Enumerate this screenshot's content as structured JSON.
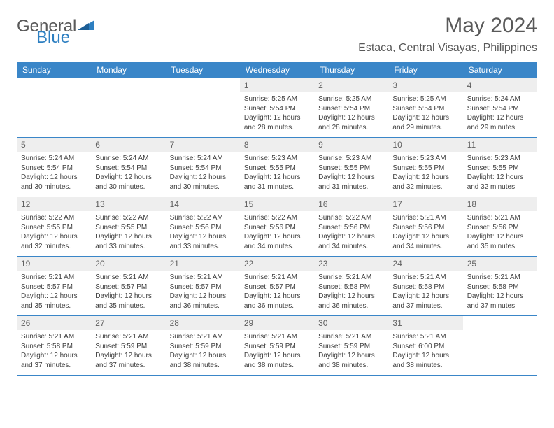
{
  "logo": {
    "text_general": "General",
    "text_blue": "Blue",
    "icon_color": "#2d7fc1"
  },
  "header": {
    "month_title": "May 2024",
    "location": "Estaca, Central Visayas, Philippines"
  },
  "colors": {
    "header_bg": "#3a86c8",
    "header_text": "#ffffff",
    "daynum_bg": "#eeeeee",
    "border": "#3a86c8",
    "body_text": "#404040"
  },
  "weekdays": [
    "Sunday",
    "Monday",
    "Tuesday",
    "Wednesday",
    "Thursday",
    "Friday",
    "Saturday"
  ],
  "weeks": [
    [
      {
        "n": "",
        "sr": "",
        "ss": "",
        "dl": ""
      },
      {
        "n": "",
        "sr": "",
        "ss": "",
        "dl": ""
      },
      {
        "n": "",
        "sr": "",
        "ss": "",
        "dl": ""
      },
      {
        "n": "1",
        "sr": "Sunrise: 5:25 AM",
        "ss": "Sunset: 5:54 PM",
        "dl": "Daylight: 12 hours and 28 minutes."
      },
      {
        "n": "2",
        "sr": "Sunrise: 5:25 AM",
        "ss": "Sunset: 5:54 PM",
        "dl": "Daylight: 12 hours and 28 minutes."
      },
      {
        "n": "3",
        "sr": "Sunrise: 5:25 AM",
        "ss": "Sunset: 5:54 PM",
        "dl": "Daylight: 12 hours and 29 minutes."
      },
      {
        "n": "4",
        "sr": "Sunrise: 5:24 AM",
        "ss": "Sunset: 5:54 PM",
        "dl": "Daylight: 12 hours and 29 minutes."
      }
    ],
    [
      {
        "n": "5",
        "sr": "Sunrise: 5:24 AM",
        "ss": "Sunset: 5:54 PM",
        "dl": "Daylight: 12 hours and 30 minutes."
      },
      {
        "n": "6",
        "sr": "Sunrise: 5:24 AM",
        "ss": "Sunset: 5:54 PM",
        "dl": "Daylight: 12 hours and 30 minutes."
      },
      {
        "n": "7",
        "sr": "Sunrise: 5:24 AM",
        "ss": "Sunset: 5:54 PM",
        "dl": "Daylight: 12 hours and 30 minutes."
      },
      {
        "n": "8",
        "sr": "Sunrise: 5:23 AM",
        "ss": "Sunset: 5:55 PM",
        "dl": "Daylight: 12 hours and 31 minutes."
      },
      {
        "n": "9",
        "sr": "Sunrise: 5:23 AM",
        "ss": "Sunset: 5:55 PM",
        "dl": "Daylight: 12 hours and 31 minutes."
      },
      {
        "n": "10",
        "sr": "Sunrise: 5:23 AM",
        "ss": "Sunset: 5:55 PM",
        "dl": "Daylight: 12 hours and 32 minutes."
      },
      {
        "n": "11",
        "sr": "Sunrise: 5:23 AM",
        "ss": "Sunset: 5:55 PM",
        "dl": "Daylight: 12 hours and 32 minutes."
      }
    ],
    [
      {
        "n": "12",
        "sr": "Sunrise: 5:22 AM",
        "ss": "Sunset: 5:55 PM",
        "dl": "Daylight: 12 hours and 32 minutes."
      },
      {
        "n": "13",
        "sr": "Sunrise: 5:22 AM",
        "ss": "Sunset: 5:55 PM",
        "dl": "Daylight: 12 hours and 33 minutes."
      },
      {
        "n": "14",
        "sr": "Sunrise: 5:22 AM",
        "ss": "Sunset: 5:56 PM",
        "dl": "Daylight: 12 hours and 33 minutes."
      },
      {
        "n": "15",
        "sr": "Sunrise: 5:22 AM",
        "ss": "Sunset: 5:56 PM",
        "dl": "Daylight: 12 hours and 34 minutes."
      },
      {
        "n": "16",
        "sr": "Sunrise: 5:22 AM",
        "ss": "Sunset: 5:56 PM",
        "dl": "Daylight: 12 hours and 34 minutes."
      },
      {
        "n": "17",
        "sr": "Sunrise: 5:21 AM",
        "ss": "Sunset: 5:56 PM",
        "dl": "Daylight: 12 hours and 34 minutes."
      },
      {
        "n": "18",
        "sr": "Sunrise: 5:21 AM",
        "ss": "Sunset: 5:56 PM",
        "dl": "Daylight: 12 hours and 35 minutes."
      }
    ],
    [
      {
        "n": "19",
        "sr": "Sunrise: 5:21 AM",
        "ss": "Sunset: 5:57 PM",
        "dl": "Daylight: 12 hours and 35 minutes."
      },
      {
        "n": "20",
        "sr": "Sunrise: 5:21 AM",
        "ss": "Sunset: 5:57 PM",
        "dl": "Daylight: 12 hours and 35 minutes."
      },
      {
        "n": "21",
        "sr": "Sunrise: 5:21 AM",
        "ss": "Sunset: 5:57 PM",
        "dl": "Daylight: 12 hours and 36 minutes."
      },
      {
        "n": "22",
        "sr": "Sunrise: 5:21 AM",
        "ss": "Sunset: 5:57 PM",
        "dl": "Daylight: 12 hours and 36 minutes."
      },
      {
        "n": "23",
        "sr": "Sunrise: 5:21 AM",
        "ss": "Sunset: 5:58 PM",
        "dl": "Daylight: 12 hours and 36 minutes."
      },
      {
        "n": "24",
        "sr": "Sunrise: 5:21 AM",
        "ss": "Sunset: 5:58 PM",
        "dl": "Daylight: 12 hours and 37 minutes."
      },
      {
        "n": "25",
        "sr": "Sunrise: 5:21 AM",
        "ss": "Sunset: 5:58 PM",
        "dl": "Daylight: 12 hours and 37 minutes."
      }
    ],
    [
      {
        "n": "26",
        "sr": "Sunrise: 5:21 AM",
        "ss": "Sunset: 5:58 PM",
        "dl": "Daylight: 12 hours and 37 minutes."
      },
      {
        "n": "27",
        "sr": "Sunrise: 5:21 AM",
        "ss": "Sunset: 5:59 PM",
        "dl": "Daylight: 12 hours and 37 minutes."
      },
      {
        "n": "28",
        "sr": "Sunrise: 5:21 AM",
        "ss": "Sunset: 5:59 PM",
        "dl": "Daylight: 12 hours and 38 minutes."
      },
      {
        "n": "29",
        "sr": "Sunrise: 5:21 AM",
        "ss": "Sunset: 5:59 PM",
        "dl": "Daylight: 12 hours and 38 minutes."
      },
      {
        "n": "30",
        "sr": "Sunrise: 5:21 AM",
        "ss": "Sunset: 5:59 PM",
        "dl": "Daylight: 12 hours and 38 minutes."
      },
      {
        "n": "31",
        "sr": "Sunrise: 5:21 AM",
        "ss": "Sunset: 6:00 PM",
        "dl": "Daylight: 12 hours and 38 minutes."
      },
      {
        "n": "",
        "sr": "",
        "ss": "",
        "dl": ""
      }
    ]
  ]
}
